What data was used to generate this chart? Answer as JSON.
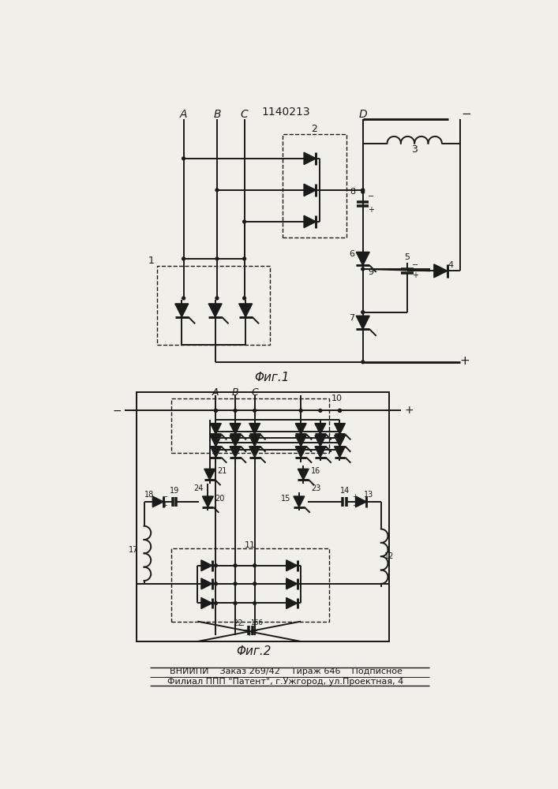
{
  "title": "1140213",
  "fig1_label": "Φиг.1",
  "fig2_label": "Φиг.2",
  "footer_line1": "ВНИИПИ    Заказ 269/42    Тираж 646    Подписное",
  "footer_line2": "Филиал ППП \"Патент\", г.Ужгород, ул.Проектная, 4",
  "bg_color": "#f0efea",
  "line_color": "#1a1a1a",
  "line_width": 1.4
}
